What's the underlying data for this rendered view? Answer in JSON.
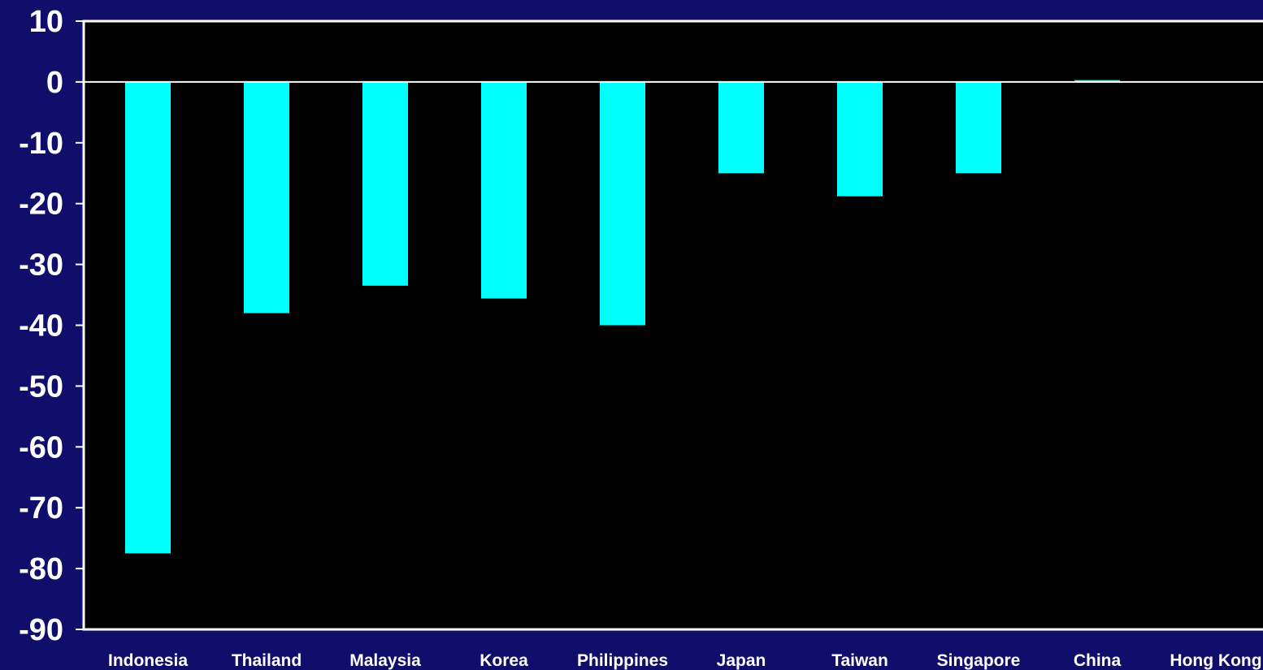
{
  "chart_data": {
    "type": "bar",
    "categories": [
      "Indonesia",
      "Thailand",
      "Malaysia",
      "Korea",
      "Philippines",
      "Japan",
      "Taiwan",
      "Singapore",
      "China",
      "Hong Kong"
    ],
    "values": [
      -77.5,
      -38,
      -33.5,
      -35.6,
      -40,
      -15,
      -18.8,
      -15,
      0.3,
      0
    ],
    "ylim": [
      -90,
      10
    ],
    "yticks": [
      10,
      0,
      -10,
      -20,
      -30,
      -40,
      -50,
      -60,
      -70,
      -80,
      -90
    ],
    "grid": false,
    "colors": {
      "background": "#0f0f6b",
      "plot_area": "#000000",
      "bar": "#00ffff",
      "axis": "#ffffff",
      "text": "#ffffff"
    }
  }
}
